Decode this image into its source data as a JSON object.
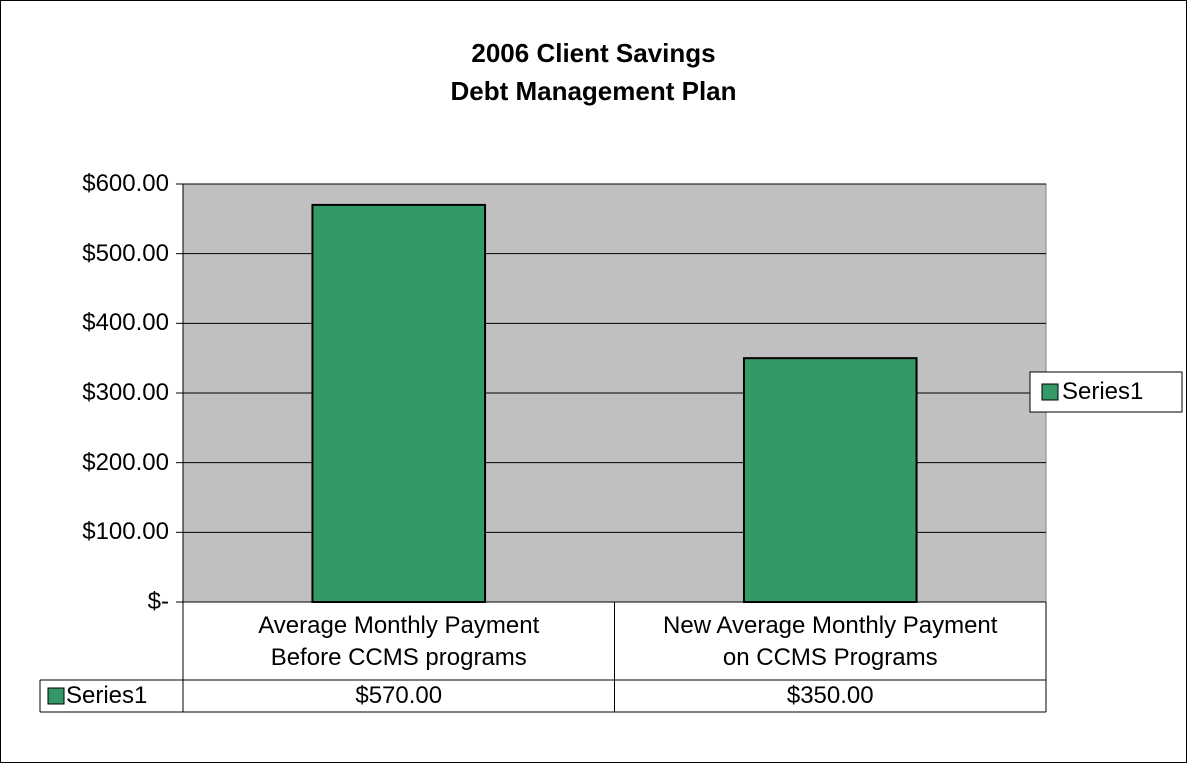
{
  "chart_data": {
    "type": "bar",
    "title": "2006 Client Savings\nDebt Management Plan",
    "categories": [
      "Average Monthly Payment\nBefore CCMS programs",
      "New Average Monthly Payment\non CCMS Programs"
    ],
    "series": [
      {
        "name": "Series1",
        "color": "#339966",
        "values": [
          570,
          350
        ],
        "value_labels": [
          "$570.00",
          "$350.00"
        ]
      }
    ],
    "ylim": [
      0,
      600
    ],
    "yticks": [
      {
        "value": 0,
        "label": "$-"
      },
      {
        "value": 100,
        "label": "$100.00"
      },
      {
        "value": 200,
        "label": "$200.00"
      },
      {
        "value": 300,
        "label": "$300.00"
      },
      {
        "value": 400,
        "label": "$400.00"
      },
      {
        "value": 500,
        "label": "$500.00"
      },
      {
        "value": 600,
        "label": "$600.00"
      }
    ],
    "grid": true,
    "legend": "right",
    "plot_background": "#c0c0c0"
  }
}
